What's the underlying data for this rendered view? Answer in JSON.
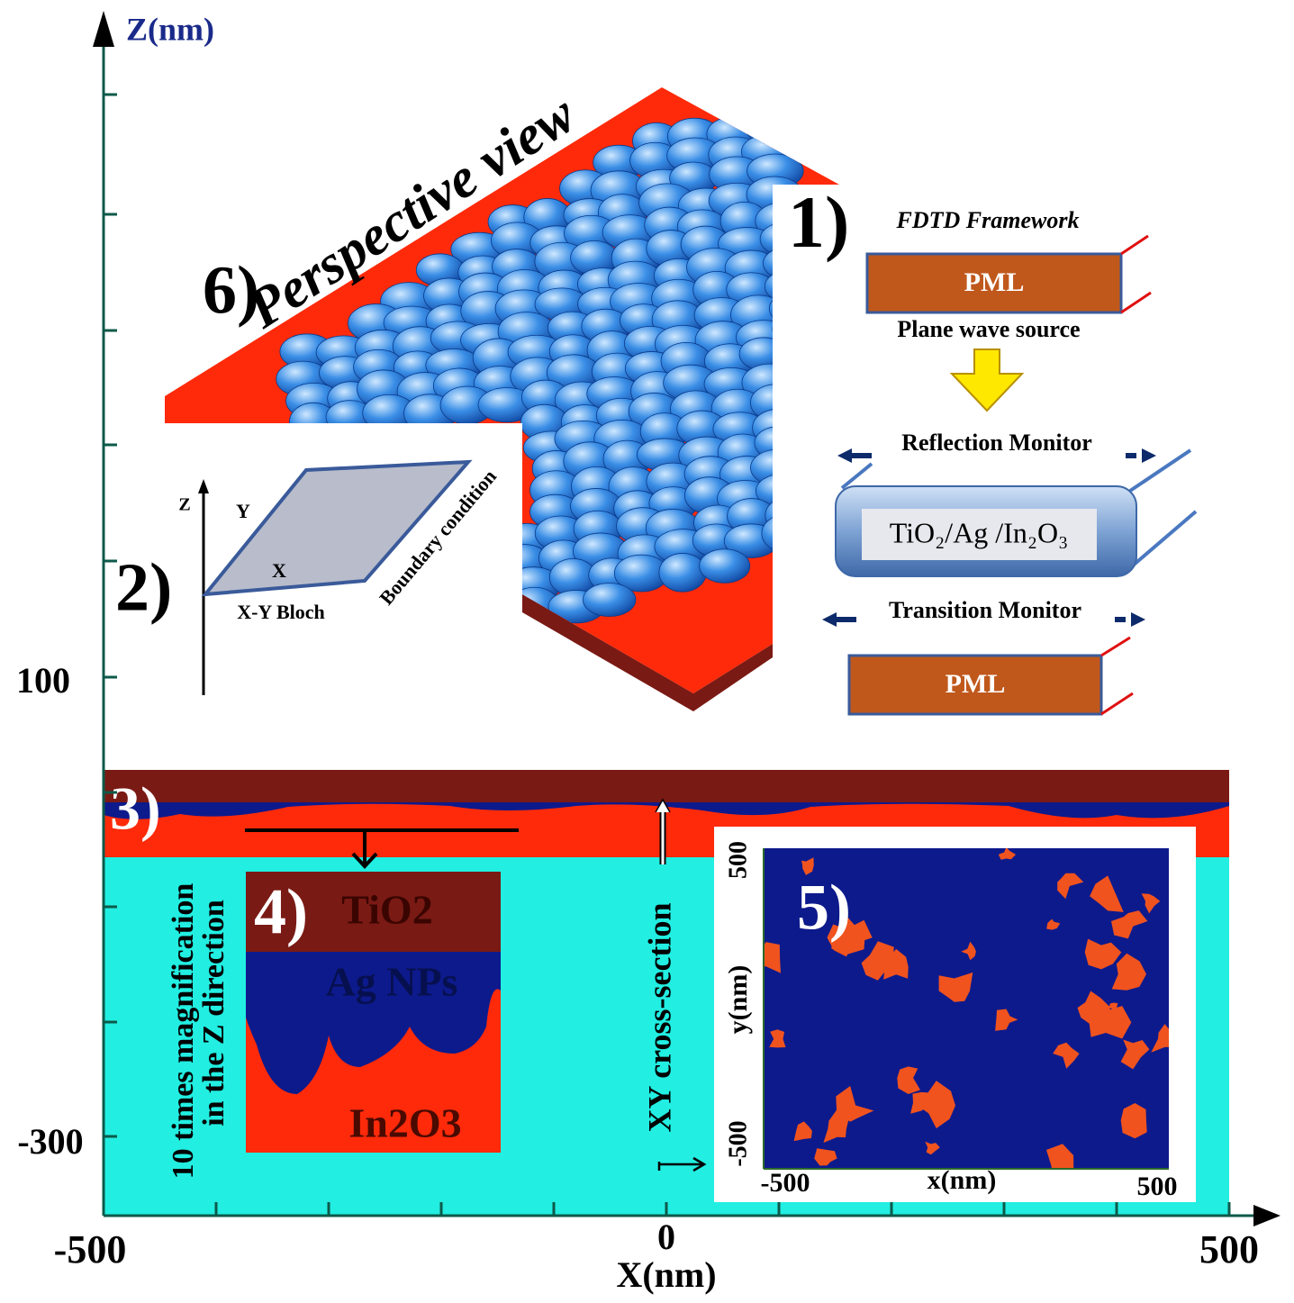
{
  "axes": {
    "z_label": "Z(nm)",
    "x_label": "X(nm)",
    "x_ticks": [
      "-500",
      "0",
      "500"
    ],
    "z_ticks": [
      "100",
      "-300"
    ]
  },
  "panel_1": {
    "label": "1)",
    "title": "FDTD Framework",
    "pml_top": "PML",
    "source": "Plane wave source",
    "reflection": "Reflection Monitor",
    "stack": "TiO₂/Ag /In₂O₃",
    "transition": "Transition Monitor",
    "pml_bottom": "PML"
  },
  "panel_2": {
    "label": "2)",
    "z": "Z",
    "y": "Y",
    "x": "X",
    "bloch": "X-Y Bloch",
    "boundary": "Boundary condition"
  },
  "panel_3": {
    "label": "3)",
    "magnification": [
      "10 times magnification",
      "in the Z direction"
    ],
    "cross_section": "XY cross-section"
  },
  "panel_4": {
    "label": "4)",
    "layers": [
      "TiO2",
      "Ag NPs",
      "In2O3"
    ]
  },
  "panel_5": {
    "label": "5)",
    "y_label": "y(nm)",
    "x_label": "x(nm)",
    "y_ticks": [
      "500",
      "-500"
    ],
    "x_ticks": [
      "-500",
      "500"
    ]
  },
  "panel_6": {
    "label": "6)",
    "title": "Perspective view"
  }
}
